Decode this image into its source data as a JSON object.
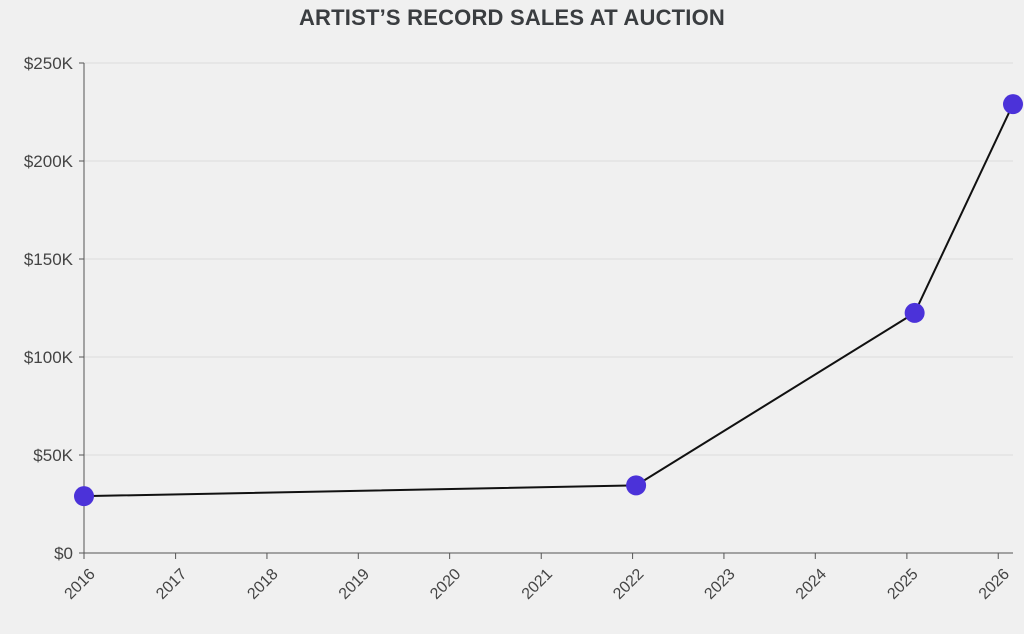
{
  "chart_data": {
    "type": "line",
    "title": "ARTIST’S RECORD SALES AT AUCTION",
    "xlabel": "",
    "ylabel": "",
    "x_ticks": [
      "2016",
      "2017",
      "2018",
      "2019",
      "2020",
      "2021",
      "2022",
      "2023",
      "2024",
      "2025",
      "2026"
    ],
    "y_ticks": [
      "$0",
      "$50K",
      "$100K",
      "$150K",
      "$200K",
      "$250K"
    ],
    "ylim": [
      0,
      250000
    ],
    "xlim": [
      "2016-01-01",
      "2026-03-01"
    ],
    "grid": "horizontal",
    "series": [
      {
        "points": [
          {
            "x": "2016-01-01",
            "y": 29000
          },
          {
            "x": "2022-01-15",
            "y": 34500
          },
          {
            "x": "2025-02-01",
            "y": 122500
          },
          {
            "x": "2026-03-01",
            "y": 229000
          }
        ]
      }
    ],
    "colors": {
      "point": "#4b32d9",
      "line": "#111111"
    }
  }
}
